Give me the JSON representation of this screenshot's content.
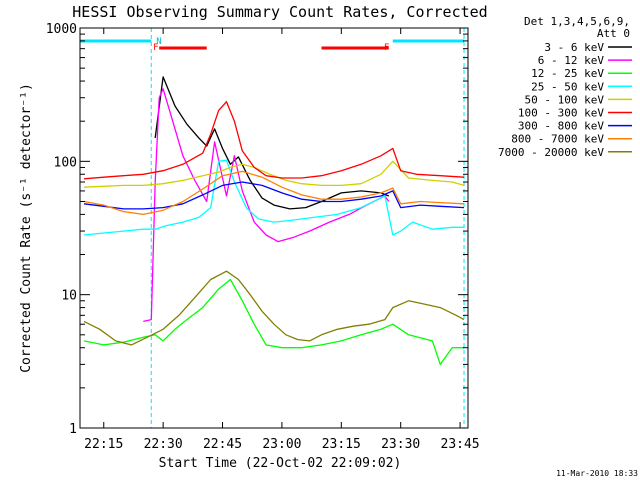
{
  "chart_data": {
    "type": "line",
    "title": "HESSI Observing Summary Count Rates, Corrected",
    "xlabel": "Start Time (22-Oct-02 22:09:02)",
    "ylabel": "Corrected Count Rate (s⁻¹ detector⁻¹)",
    "yscale": "log",
    "xlim": [
      "22:09",
      "23:47"
    ],
    "ylim": [
      1,
      1000
    ],
    "x_ticks": [
      "22:15",
      "22:30",
      "22:45",
      "23:00",
      "23:15",
      "23:30",
      "23:45"
    ],
    "y_ticks": [
      "1",
      "10",
      "100",
      "1000"
    ],
    "legend_position": "right",
    "legend_header": [
      "Det 1,3,4,5,6,9,",
      "Att 0"
    ],
    "footer_date": "11-Mar-2010 18:33",
    "flag_labels": [
      "F",
      "N",
      "F"
    ],
    "spans": {
      "night": [
        [
          "22:09",
          "22:27"
        ],
        [
          "23:28",
          "23:46"
        ]
      ],
      "flare": [
        [
          "22:29",
          "22:41"
        ],
        [
          "23:10",
          "23:27"
        ]
      ]
    },
    "series": [
      {
        "name": "3 - 6 keV",
        "color": "#000000",
        "x": [
          "22:28",
          "22:30",
          "22:33",
          "22:36",
          "22:39",
          "22:41",
          "22:43",
          "22:45",
          "22:47",
          "22:49",
          "22:52",
          "22:55",
          "22:58",
          "23:02",
          "23:06",
          "23:10",
          "23:15",
          "23:20",
          "23:25",
          "23:27"
        ],
        "y": [
          150,
          430,
          260,
          190,
          150,
          130,
          175,
          125,
          95,
          108,
          72,
          53,
          47,
          44,
          45,
          50,
          58,
          60,
          58,
          55
        ]
      },
      {
        "name": "6 - 12 keV",
        "color": "#ff00ff",
        "x": [
          "22:25",
          "22:27",
          "22:28",
          "22:29",
          "22:30",
          "22:32",
          "22:35",
          "22:38",
          "22:41",
          "22:43",
          "22:46",
          "22:48",
          "22:50",
          "22:53",
          "22:56",
          "22:59",
          "23:03",
          "23:07",
          "23:12",
          "23:17",
          "23:22",
          "23:26",
          "23:27"
        ],
        "y": [
          6.3,
          6.5,
          70,
          300,
          350,
          220,
          110,
          72,
          50,
          140,
          55,
          110,
          60,
          35,
          28,
          25,
          27,
          30,
          35,
          40,
          48,
          55,
          50
        ]
      },
      {
        "name": "12 - 25 keV",
        "color": "#00ff00",
        "x": [
          "22:10",
          "22:15",
          "22:20",
          "22:25",
          "22:28",
          "22:30",
          "22:33",
          "22:36",
          "22:40",
          "22:44",
          "22:47",
          "22:50",
          "22:53",
          "22:56",
          "23:00",
          "23:05",
          "23:10",
          "23:15",
          "23:20",
          "23:25",
          "23:28",
          "23:32",
          "23:38",
          "23:40",
          "23:43",
          "23:46"
        ],
        "y": [
          4.5,
          4.2,
          4.4,
          4.8,
          5,
          4.5,
          5.5,
          6.5,
          8,
          11,
          13,
          9,
          6,
          4.2,
          4,
          4,
          4.2,
          4.5,
          5,
          5.5,
          6,
          5,
          4.5,
          3,
          4,
          4
        ]
      },
      {
        "name": "25 - 50 keV",
        "color": "#00ffff",
        "x": [
          "22:10",
          "22:15",
          "22:20",
          "22:25",
          "22:28",
          "22:31",
          "22:35",
          "22:39",
          "22:42",
          "22:44",
          "22:46",
          "22:48",
          "22:51",
          "22:54",
          "22:58",
          "23:02",
          "23:08",
          "23:14",
          "23:20",
          "23:26",
          "23:28",
          "23:30",
          "23:33",
          "23:38",
          "23:43",
          "23:46"
        ],
        "y": [
          28,
          29,
          30,
          31,
          31,
          33,
          35,
          38,
          45,
          100,
          102,
          70,
          45,
          37,
          35,
          36,
          38,
          40,
          45,
          55,
          28,
          30,
          35,
          31,
          32,
          32
        ]
      },
      {
        "name": "50 - 100 keV",
        "color": "#d0d000",
        "x": [
          "22:10",
          "22:15",
          "22:20",
          "22:25",
          "22:30",
          "22:35",
          "22:40",
          "22:44",
          "22:47",
          "22:50",
          "22:53",
          "22:57",
          "23:01",
          "23:05",
          "23:10",
          "23:15",
          "23:20",
          "23:25",
          "23:28",
          "23:32",
          "23:38",
          "23:43",
          "23:46"
        ],
        "y": [
          64,
          65,
          66,
          66,
          68,
          72,
          78,
          83,
          90,
          95,
          90,
          80,
          72,
          68,
          66,
          66,
          68,
          80,
          100,
          75,
          72,
          70,
          66
        ]
      },
      {
        "name": "100 - 300 keV",
        "color": "#ff0000",
        "x": [
          "22:10",
          "22:15",
          "22:20",
          "22:25",
          "22:30",
          "22:35",
          "22:40",
          "22:42",
          "22:44",
          "22:46",
          "22:48",
          "22:50",
          "22:53",
          "22:56",
          "23:00",
          "23:05",
          "23:10",
          "23:15",
          "23:20",
          "23:25",
          "23:28",
          "23:30",
          "23:34",
          "23:40",
          "23:46"
        ],
        "y": [
          74,
          76,
          78,
          80,
          85,
          95,
          115,
          160,
          240,
          280,
          200,
          120,
          90,
          78,
          75,
          75,
          78,
          85,
          95,
          110,
          125,
          85,
          80,
          78,
          76
        ]
      },
      {
        "name": "300 - 800 keV",
        "color": "#0000ff",
        "x": [
          "22:10",
          "22:15",
          "22:20",
          "22:25",
          "22:30",
          "22:35",
          "22:40",
          "22:45",
          "22:50",
          "22:55",
          "23:00",
          "23:05",
          "23:10",
          "23:15",
          "23:20",
          "23:25",
          "23:28",
          "23:30",
          "23:35",
          "23:40",
          "23:46"
        ],
        "y": [
          48,
          46,
          44,
          44,
          45,
          48,
          56,
          66,
          70,
          66,
          58,
          52,
          50,
          50,
          52,
          55,
          60,
          45,
          47,
          46,
          45
        ]
      },
      {
        "name": "800 - 7000 keV",
        "color": "#ff8000",
        "x": [
          "22:10",
          "22:15",
          "22:20",
          "22:25",
          "22:30",
          "22:35",
          "22:40",
          "22:45",
          "22:50",
          "22:55",
          "23:00",
          "23:05",
          "23:10",
          "23:15",
          "23:20",
          "23:25",
          "23:28",
          "23:30",
          "23:35",
          "23:40",
          "23:46"
        ],
        "y": [
          50,
          47,
          42,
          40,
          43,
          50,
          62,
          78,
          84,
          76,
          64,
          56,
          52,
          52,
          54,
          58,
          63,
          48,
          50,
          49,
          48
        ]
      },
      {
        "name": "7000 - 20000 keV",
        "color": "#808000",
        "x": [
          "22:10",
          "22:14",
          "22:18",
          "22:22",
          "22:26",
          "22:30",
          "22:34",
          "22:38",
          "22:42",
          "22:46",
          "22:49",
          "22:52",
          "22:55",
          "22:58",
          "23:01",
          "23:04",
          "23:07",
          "23:10",
          "23:14",
          "23:18",
          "23:22",
          "23:26",
          "23:28",
          "23:32",
          "23:36",
          "23:40",
          "23:44",
          "23:46"
        ],
        "y": [
          6.3,
          5.5,
          4.5,
          4.2,
          4.8,
          5.5,
          7,
          9.5,
          13,
          15,
          13,
          10,
          7.5,
          6,
          5,
          4.6,
          4.5,
          5,
          5.5,
          5.8,
          6,
          6.5,
          8,
          9,
          8.5,
          8,
          7,
          6.5
        ]
      }
    ]
  }
}
